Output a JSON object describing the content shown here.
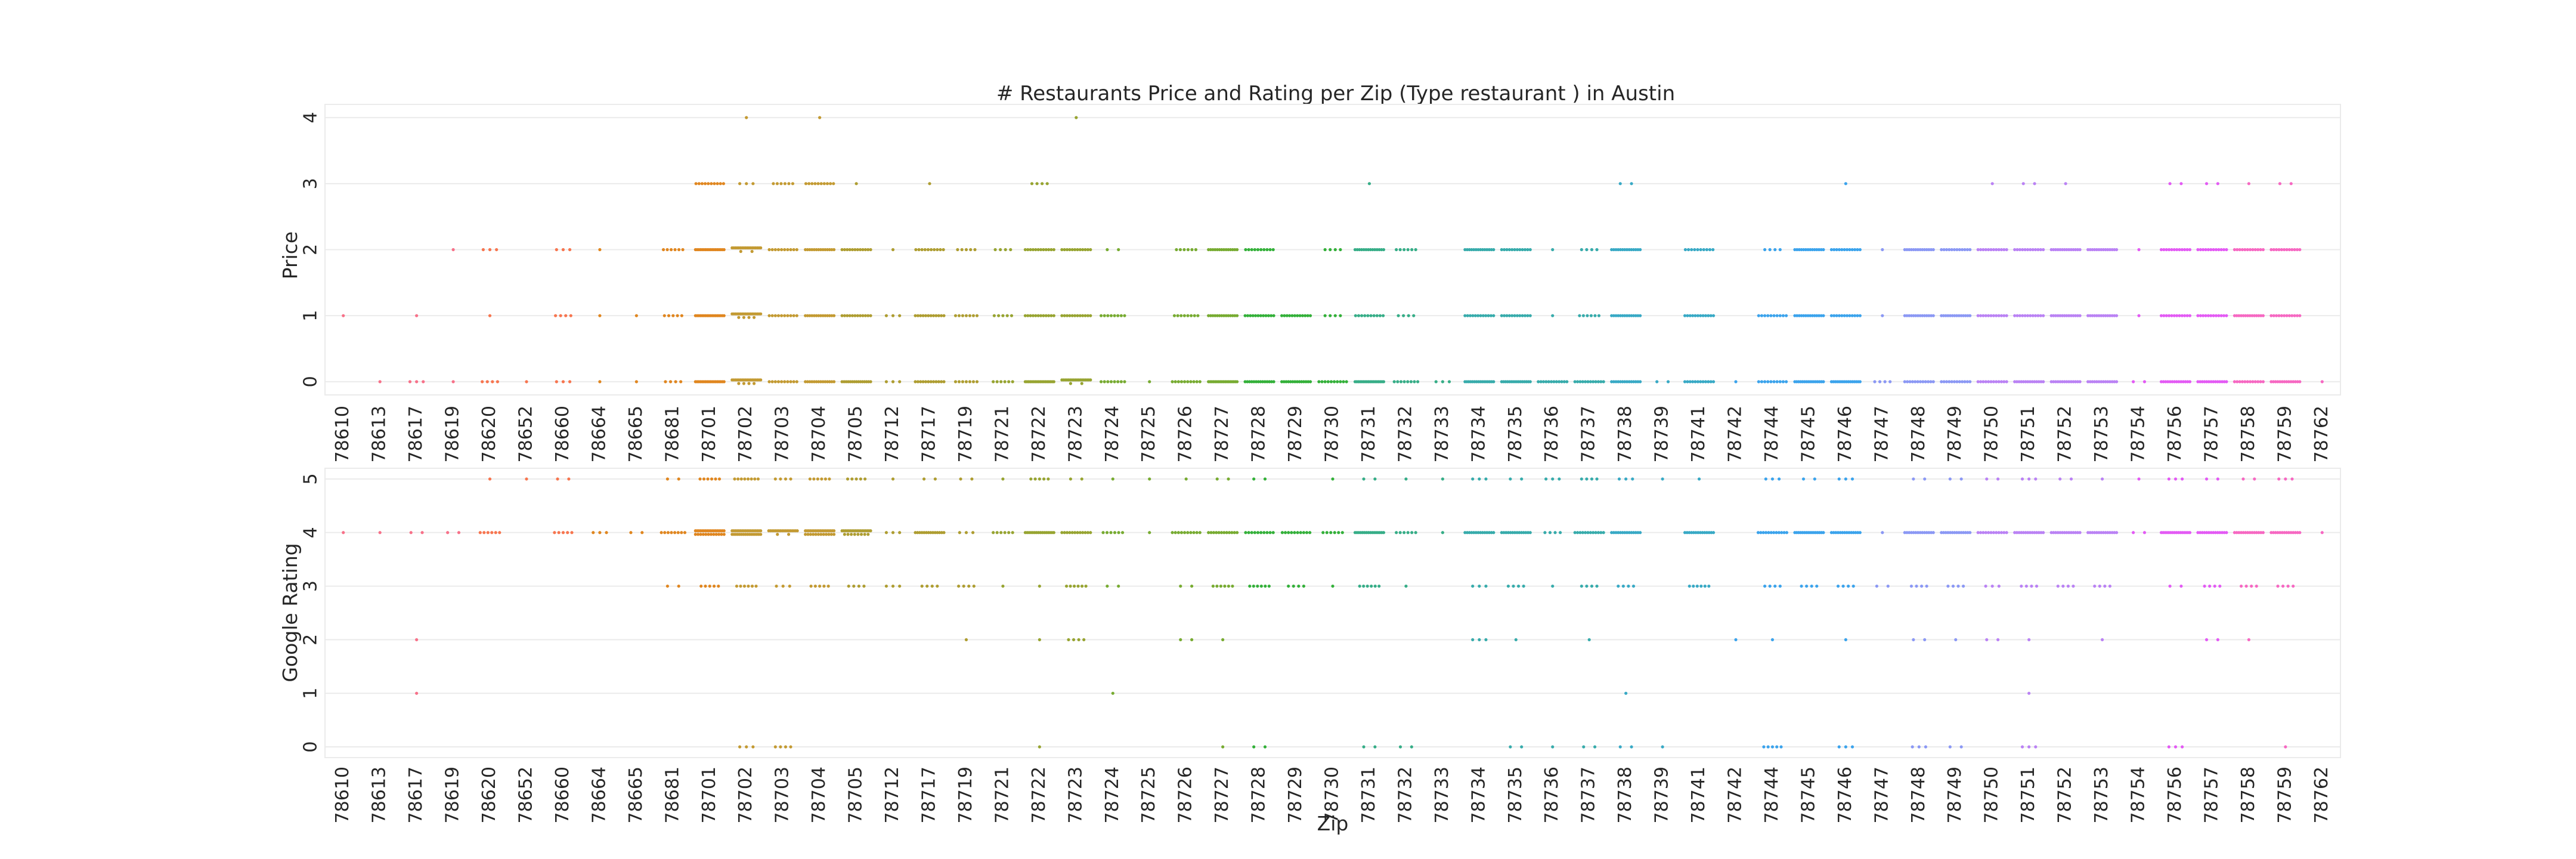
{
  "chart_data": {
    "type": "scatter",
    "subtype": "strip",
    "title": "# Restaurants Price and Rating per Zip (Type restaurant ) in Austin",
    "xlabel": "Zip",
    "categories": [
      "78610",
      "78613",
      "78617",
      "78619",
      "78620",
      "78652",
      "78660",
      "78664",
      "78665",
      "78681",
      "78701",
      "78702",
      "78703",
      "78704",
      "78705",
      "78712",
      "78717",
      "78719",
      "78721",
      "78722",
      "78723",
      "78724",
      "78725",
      "78726",
      "78727",
      "78728",
      "78729",
      "78730",
      "78731",
      "78732",
      "78733",
      "78734",
      "78735",
      "78736",
      "78737",
      "78738",
      "78739",
      "78741",
      "78742",
      "78744",
      "78745",
      "78746",
      "78747",
      "78748",
      "78749",
      "78750",
      "78751",
      "78752",
      "78753",
      "78754",
      "78756",
      "78757",
      "78758",
      "78759",
      "78762"
    ],
    "colors": [
      "#f77189",
      "#f7754f",
      "#e0861f",
      "#c39a32",
      "#ae9d31",
      "#97a431",
      "#77ab31",
      "#33b039",
      "#36ad87",
      "#37abab",
      "#38a9c5",
      "#3ba3ec",
      "#8b98f4",
      "#ba82f4",
      "#e35af4",
      "#f668c2"
    ],
    "panels": [
      {
        "ylabel": "Price",
        "yticks": [
          "0",
          "1",
          "2",
          "3",
          "4"
        ],
        "ylim": [
          -0.2,
          4.2
        ],
        "counts": [
          [
            0,
            1,
            0,
            0,
            0
          ],
          [
            1,
            0,
            0,
            0,
            0
          ],
          [
            3,
            1,
            0,
            0,
            0
          ],
          [
            1,
            0,
            1,
            0,
            0
          ],
          [
            4,
            1,
            3,
            0,
            0
          ],
          [
            1,
            0,
            0,
            0,
            0
          ],
          [
            3,
            4,
            3,
            0,
            0
          ],
          [
            1,
            1,
            1,
            0,
            0
          ],
          [
            1,
            1,
            0,
            0,
            0
          ],
          [
            4,
            5,
            6,
            0,
            0
          ],
          [
            18,
            18,
            18,
            10,
            0
          ],
          [
            22,
            22,
            20,
            3,
            1
          ],
          [
            10,
            10,
            10,
            6,
            0
          ],
          [
            14,
            14,
            14,
            10,
            1
          ],
          [
            15,
            12,
            12,
            1,
            0
          ],
          [
            3,
            3,
            1,
            0,
            0
          ],
          [
            12,
            12,
            10,
            1,
            0
          ],
          [
            7,
            7,
            5,
            0,
            0
          ],
          [
            6,
            5,
            4,
            0,
            0
          ],
          [
            18,
            12,
            12,
            4,
            0
          ],
          [
            20,
            12,
            12,
            0,
            1
          ],
          [
            8,
            8,
            2,
            0,
            0
          ],
          [
            1,
            0,
            0,
            0,
            0
          ],
          [
            10,
            8,
            6,
            0,
            0
          ],
          [
            18,
            14,
            14,
            0,
            0
          ],
          [
            14,
            12,
            10,
            0,
            0
          ],
          [
            14,
            12,
            0,
            0,
            0
          ],
          [
            10,
            4,
            4,
            0,
            0
          ],
          [
            18,
            10,
            14,
            1,
            0
          ],
          [
            8,
            4,
            6,
            0,
            0
          ],
          [
            3,
            0,
            0,
            0,
            0
          ],
          [
            16,
            12,
            14,
            0,
            0
          ],
          [
            16,
            12,
            12,
            0,
            0
          ],
          [
            12,
            1,
            1,
            0,
            0
          ],
          [
            12,
            6,
            4,
            0,
            0
          ],
          [
            14,
            14,
            14,
            2,
            0
          ],
          [
            2,
            0,
            0,
            0,
            0
          ],
          [
            12,
            12,
            10,
            0,
            0
          ],
          [
            1,
            0,
            0,
            0,
            0
          ],
          [
            10,
            10,
            4,
            0,
            0
          ],
          [
            16,
            14,
            14,
            0,
            0
          ],
          [
            16,
            12,
            12,
            1,
            0
          ],
          [
            4,
            1,
            1,
            0,
            0
          ],
          [
            12,
            14,
            14,
            0,
            0
          ],
          [
            12,
            14,
            12,
            0,
            0
          ],
          [
            12,
            12,
            12,
            1,
            0
          ],
          [
            14,
            12,
            12,
            2,
            0
          ],
          [
            14,
            14,
            14,
            1,
            0
          ],
          [
            14,
            14,
            14,
            0,
            0
          ],
          [
            2,
            1,
            1,
            0,
            0
          ],
          [
            14,
            12,
            12,
            2,
            0
          ],
          [
            14,
            12,
            12,
            2,
            0
          ],
          [
            12,
            14,
            12,
            1,
            0
          ],
          [
            14,
            12,
            12,
            2,
            0
          ],
          [
            1,
            0,
            0,
            0,
            0
          ]
        ]
      },
      {
        "ylabel": "Google Rating",
        "yticks": [
          "0",
          "1",
          "2",
          "3",
          "4",
          "5"
        ],
        "ylim": [
          -0.2,
          5.2
        ],
        "counts": [
          [
            0,
            0,
            0,
            0,
            1,
            0
          ],
          [
            0,
            0,
            0,
            0,
            1,
            0
          ],
          [
            0,
            1,
            1,
            0,
            2,
            0
          ],
          [
            0,
            0,
            0,
            0,
            2,
            0
          ],
          [
            0,
            0,
            0,
            0,
            6,
            1
          ],
          [
            0,
            0,
            0,
            0,
            0,
            1
          ],
          [
            0,
            0,
            0,
            0,
            5,
            2
          ],
          [
            0,
            0,
            0,
            0,
            3,
            0
          ],
          [
            0,
            0,
            0,
            0,
            2,
            0
          ],
          [
            0,
            0,
            0,
            2,
            8,
            2
          ],
          [
            0,
            0,
            0,
            5,
            30,
            6
          ],
          [
            3,
            0,
            0,
            6,
            34,
            8
          ],
          [
            4,
            0,
            0,
            3,
            20,
            4
          ],
          [
            0,
            0,
            0,
            5,
            30,
            6
          ],
          [
            0,
            0,
            0,
            4,
            26,
            5
          ],
          [
            0,
            0,
            0,
            3,
            3,
            1
          ],
          [
            0,
            0,
            0,
            4,
            14,
            2
          ],
          [
            0,
            0,
            1,
            4,
            3,
            2
          ],
          [
            0,
            0,
            0,
            1,
            6,
            1
          ],
          [
            1,
            0,
            1,
            1,
            16,
            5
          ],
          [
            0,
            0,
            4,
            6,
            12,
            2
          ],
          [
            0,
            1,
            0,
            2,
            6,
            1
          ],
          [
            0,
            0,
            0,
            0,
            1,
            1
          ],
          [
            0,
            0,
            2,
            2,
            10,
            1
          ],
          [
            1,
            0,
            1,
            6,
            12,
            2
          ],
          [
            2,
            0,
            0,
            6,
            10,
            2
          ],
          [
            0,
            0,
            0,
            4,
            10,
            0
          ],
          [
            0,
            0,
            0,
            1,
            6,
            1
          ],
          [
            2,
            0,
            0,
            6,
            16,
            2
          ],
          [
            2,
            0,
            0,
            1,
            6,
            1
          ],
          [
            0,
            0,
            0,
            0,
            1,
            1
          ],
          [
            0,
            0,
            3,
            3,
            14,
            3
          ],
          [
            2,
            0,
            1,
            4,
            14,
            2
          ],
          [
            1,
            0,
            0,
            1,
            4,
            3
          ],
          [
            2,
            0,
            1,
            4,
            12,
            4
          ],
          [
            2,
            1,
            0,
            4,
            14,
            3
          ],
          [
            1,
            0,
            0,
            0,
            0,
            1
          ],
          [
            0,
            0,
            0,
            6,
            14,
            1
          ],
          [
            0,
            0,
            1,
            0,
            0,
            0
          ],
          [
            5,
            0,
            1,
            4,
            12,
            3
          ],
          [
            0,
            0,
            0,
            4,
            16,
            2
          ],
          [
            3,
            0,
            1,
            4,
            14,
            3
          ],
          [
            0,
            0,
            0,
            2,
            1,
            0
          ],
          [
            3,
            0,
            2,
            4,
            14,
            2
          ],
          [
            2,
            0,
            1,
            4,
            14,
            2
          ],
          [
            0,
            0,
            2,
            3,
            12,
            2
          ],
          [
            3,
            1,
            1,
            4,
            14,
            3
          ],
          [
            0,
            0,
            0,
            4,
            14,
            2
          ],
          [
            0,
            0,
            1,
            4,
            14,
            1
          ],
          [
            0,
            0,
            0,
            0,
            2,
            1
          ],
          [
            3,
            0,
            0,
            2,
            16,
            3
          ],
          [
            0,
            0,
            2,
            4,
            14,
            2
          ],
          [
            0,
            0,
            1,
            4,
            14,
            2
          ],
          [
            1,
            0,
            0,
            4,
            14,
            3
          ],
          [
            0,
            0,
            0,
            0,
            1,
            0
          ]
        ]
      }
    ]
  }
}
